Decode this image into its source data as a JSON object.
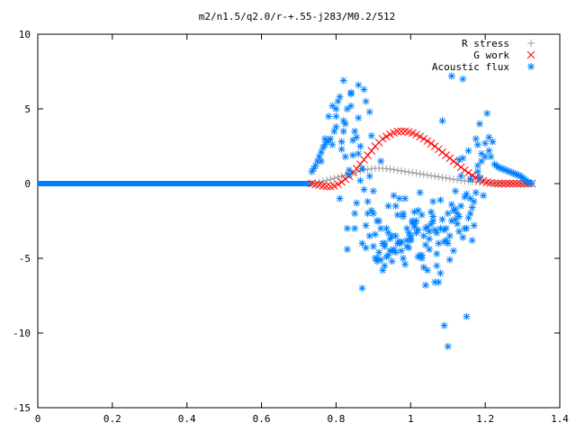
{
  "chart_data": {
    "type": "scatter",
    "title": "m2/n1.5/q2.0/r-+.55-j283/M0.2/512",
    "xlabel": "",
    "ylabel": "",
    "xlim": [
      0,
      1.4
    ],
    "ylim": [
      -15,
      10
    ],
    "x_ticks": [
      "0",
      "0.2",
      "0.4",
      "0.6",
      "0.8",
      "1",
      "1.2",
      "1.4"
    ],
    "y_ticks": [
      "10",
      "5",
      "0",
      "-5",
      "-10",
      "-15"
    ],
    "legend_position": "top-right",
    "series": [
      {
        "name": "R stress",
        "marker": "+",
        "color": "#a0a0a0",
        "x": [
          0.735,
          0.745,
          0.755,
          0.765,
          0.775,
          0.785,
          0.795,
          0.805,
          0.815,
          0.825,
          0.835,
          0.845,
          0.855,
          0.865,
          0.875,
          0.885,
          0.895,
          0.905,
          0.915,
          0.925,
          0.935,
          0.945,
          0.955,
          0.965,
          0.975,
          0.985,
          0.995,
          1.005,
          1.015,
          1.025,
          1.035,
          1.045,
          1.055,
          1.065,
          1.075,
          1.085,
          1.095,
          1.105,
          1.115,
          1.125,
          1.135,
          1.145,
          1.155,
          1.165,
          1.175,
          1.185,
          1.195,
          1.205,
          1.215,
          1.225,
          1.235,
          1.245,
          1.255,
          1.265,
          1.275,
          1.285,
          1.295,
          1.305,
          1.315,
          1.325
        ],
        "y": [
          0.0,
          0.05,
          0.1,
          0.16,
          0.22,
          0.29,
          0.36,
          0.43,
          0.5,
          0.57,
          0.64,
          0.71,
          0.78,
          0.85,
          0.91,
          0.96,
          1.0,
          1.02,
          1.03,
          1.02,
          1.0,
          0.97,
          0.93,
          0.89,
          0.85,
          0.81,
          0.77,
          0.73,
          0.69,
          0.65,
          0.61,
          0.57,
          0.53,
          0.49,
          0.45,
          0.41,
          0.37,
          0.33,
          0.29,
          0.25,
          0.21,
          0.18,
          0.15,
          0.12,
          0.1,
          0.08,
          0.06,
          0.05,
          0.04,
          0.03,
          0.02,
          0.02,
          0.01,
          0.01,
          0.0,
          0.0,
          0.0,
          0.0,
          0.0,
          0.0
        ]
      },
      {
        "name": "G work",
        "marker": "x",
        "color": "#ff0000",
        "x": [
          0.735,
          0.745,
          0.755,
          0.765,
          0.775,
          0.785,
          0.795,
          0.805,
          0.815,
          0.825,
          0.835,
          0.845,
          0.855,
          0.865,
          0.875,
          0.885,
          0.895,
          0.905,
          0.915,
          0.925,
          0.935,
          0.945,
          0.955,
          0.965,
          0.975,
          0.985,
          0.995,
          1.005,
          1.015,
          1.025,
          1.035,
          1.045,
          1.055,
          1.065,
          1.075,
          1.085,
          1.095,
          1.105,
          1.115,
          1.125,
          1.135,
          1.145,
          1.155,
          1.165,
          1.175,
          1.185,
          1.195,
          1.205,
          1.215,
          1.225,
          1.235,
          1.245,
          1.255,
          1.265,
          1.275,
          1.285,
          1.295,
          1.305,
          1.315,
          1.325
        ],
        "y": [
          0.0,
          -0.05,
          -0.1,
          -0.15,
          -0.18,
          -0.2,
          -0.15,
          -0.05,
          0.1,
          0.3,
          0.5,
          0.75,
          1.0,
          1.3,
          1.6,
          1.9,
          2.2,
          2.5,
          2.75,
          3.0,
          3.15,
          3.3,
          3.4,
          3.48,
          3.5,
          3.5,
          3.45,
          3.38,
          3.28,
          3.15,
          3.0,
          2.85,
          2.68,
          2.5,
          2.3,
          2.1,
          1.9,
          1.7,
          1.5,
          1.3,
          1.1,
          0.9,
          0.72,
          0.55,
          0.4,
          0.28,
          0.18,
          0.1,
          0.05,
          0.02,
          0.0,
          0.0,
          0.0,
          0.0,
          0.0,
          0.0,
          0.0,
          0.0,
          0.0,
          0.0
        ]
      },
      {
        "name": "Acoustic flux",
        "marker": "*",
        "color": "#0080ff",
        "x": [
          0.735,
          0.74,
          0.745,
          0.75,
          0.755,
          0.76,
          0.765,
          0.77,
          0.775,
          0.78,
          0.785,
          0.79,
          0.795,
          0.8,
          0.805,
          0.81,
          0.815,
          0.82,
          0.825,
          0.83,
          0.835,
          0.84,
          0.845,
          0.85,
          0.855,
          0.86,
          0.865,
          0.87,
          0.875,
          0.88,
          0.885,
          0.89,
          0.895,
          0.9,
          0.905,
          0.91,
          0.915,
          0.92,
          0.925,
          0.93,
          0.935,
          0.94,
          0.945,
          0.95,
          0.955,
          0.96,
          0.965,
          0.97,
          0.975,
          0.98,
          0.985,
          0.99,
          0.995,
          1.0,
          1.005,
          1.01,
          1.015,
          1.02,
          1.025,
          1.03,
          1.035,
          1.04,
          1.045,
          1.05,
          1.055,
          1.06,
          1.065,
          1.07,
          1.075,
          1.08,
          1.085,
          1.09,
          1.095,
          1.1,
          1.105,
          1.11,
          1.115,
          1.12,
          1.125,
          1.13,
          1.135,
          1.14,
          1.145,
          1.15,
          1.155,
          1.16,
          1.165,
          1.17,
          1.175,
          1.18,
          1.185,
          1.19,
          1.195,
          1.2,
          1.205,
          1.21,
          1.215,
          1.22,
          1.225,
          1.23,
          1.235,
          1.24,
          1.245,
          1.25,
          1.255,
          1.26,
          1.265,
          1.27,
          1.275,
          1.28,
          1.285,
          1.29,
          1.295,
          1.3,
          1.305,
          1.31,
          1.315,
          1.32,
          1.325,
          0.76,
          0.77,
          0.78,
          0.79,
          0.8,
          0.81,
          0.82,
          0.83,
          0.84,
          0.85,
          0.86,
          0.87,
          0.88,
          0.89,
          0.9,
          0.91,
          0.92,
          0.93,
          0.94,
          0.95,
          0.96,
          0.97,
          0.98,
          0.99,
          1.0,
          1.01,
          1.02,
          1.03,
          1.04,
          1.05,
          1.06,
          1.07,
          1.08,
          1.09,
          1.1,
          1.11,
          1.12,
          1.13,
          1.14,
          1.15,
          1.16,
          1.17,
          1.18,
          1.19,
          1.2,
          1.21,
          0.815,
          0.825,
          0.835,
          0.845,
          0.855,
          0.865,
          0.875,
          0.885,
          0.895,
          0.905,
          0.915,
          0.925,
          0.935,
          0.945,
          0.955,
          0.965,
          0.975,
          0.985,
          0.995,
          1.005,
          1.015,
          1.025,
          1.035,
          1.045,
          1.055,
          1.065,
          1.075,
          1.085,
          1.095,
          1.105,
          1.115,
          1.125,
          1.135,
          1.145,
          1.155,
          1.165,
          1.175,
          1.185,
          0.8,
          0.82,
          0.84,
          0.86,
          0.88,
          0.9,
          0.92,
          0.94,
          0.96,
          0.98,
          1.0,
          1.02,
          1.04,
          1.06,
          1.08,
          1.1,
          1.12,
          1.14,
          1.16,
          1.18,
          0.83,
          0.87,
          0.91,
          0.95,
          0.99,
          1.03,
          1.07,
          1.11,
          1.15,
          0.85,
          0.89,
          0.93,
          0.97,
          1.01,
          1.05,
          1.09,
          1.13
        ],
        "y": [
          0.8,
          1.0,
          1.2,
          1.5,
          1.8,
          2.1,
          2.4,
          2.6,
          2.8,
          2.9,
          3.0,
          2.6,
          3.5,
          4.5,
          5.5,
          -1.0,
          2.8,
          6.9,
          4.0,
          -4.4,
          0.9,
          5.2,
          1.9,
          -3.0,
          3.1,
          6.6,
          2.5,
          -7.0,
          6.3,
          -4.3,
          -2.0,
          0.5,
          3.2,
          -2.0,
          -5.0,
          -5.2,
          -2.5,
          1.5,
          -4.0,
          -5.5,
          -3.0,
          -1.5,
          -4.5,
          -3.5,
          -0.8,
          -1.5,
          -4.0,
          -4.0,
          -4.5,
          -5.0,
          -1.0,
          -3.0,
          -3.3,
          -3.5,
          -2.5,
          -1.9,
          -2.5,
          -1.8,
          -0.6,
          -4.8,
          -3.5,
          -6.8,
          -5.8,
          -3.7,
          -2.7,
          -1.2,
          -6.6,
          -5.5,
          -6.6,
          -3.0,
          4.2,
          -9.5,
          -3.8,
          -10.9,
          -3.5,
          7.2,
          -1.8,
          -2.4,
          -2.0,
          1.6,
          0.5,
          7.0,
          -3.0,
          -8.9,
          2.2,
          -2.0,
          -3.8,
          -1.2,
          3.0,
          1.2,
          4.0,
          2.0,
          -0.8,
          1.8,
          4.7,
          2.2,
          1.8,
          2.8,
          1.3,
          1.2,
          1.1,
          1.05,
          1.0,
          0.95,
          0.9,
          0.85,
          0.8,
          0.75,
          0.7,
          0.65,
          0.6,
          0.55,
          0.5,
          0.4,
          0.3,
          0.2,
          0.1,
          0.05,
          0.0,
          1.5,
          3.0,
          4.5,
          5.2,
          3.8,
          5.8,
          4.2,
          5.0,
          6.1,
          3.5,
          2.0,
          1.0,
          5.5,
          4.8,
          -0.5,
          -2.5,
          -3.0,
          -4.0,
          -4.8,
          -5.2,
          -3.5,
          -1.0,
          -2.0,
          -4.2,
          -3.8,
          -2.9,
          -3.1,
          -5.0,
          -4.1,
          -3.2,
          -2.2,
          -4.7,
          -6.0,
          -3.9,
          -4.0,
          -2.5,
          -1.7,
          -3.2,
          -3.6,
          -3.0,
          -1.0,
          -2.8,
          0.8,
          1.5,
          2.7,
          3.1,
          2.3,
          1.8,
          0.6,
          2.9,
          -1.3,
          0.2,
          -0.4,
          -1.2,
          -1.8,
          -3.4,
          -4.6,
          -5.8,
          -4.9,
          -3.7,
          -4.4,
          -2.1,
          -3.9,
          -5.4,
          -4.3,
          -2.6,
          -3.3,
          -4.8,
          -5.6,
          -2.9,
          -1.9,
          -3.1,
          -4.0,
          -2.4,
          -3.0,
          -5.1,
          -4.5,
          -2.7,
          -1.5,
          -0.9,
          -2.3,
          -1.6,
          -0.6,
          0.4,
          5.0,
          3.5,
          6.0,
          4.4,
          -2.8,
          -4.2,
          -5.1,
          -3.3,
          -4.6,
          -2.2,
          -3.7,
          -4.9,
          -3.0,
          -2.5,
          -1.1,
          -2.0,
          -0.5,
          1.7,
          0.3,
          2.6,
          -3.0,
          -4.0,
          -5.0,
          -4.5,
          -3.8,
          -2.1,
          -3.3,
          -1.4,
          -0.7,
          -2.0,
          -3.5,
          -4.2,
          -3.9,
          -2.7,
          -4.4,
          -3.1,
          -2.2
        ]
      }
    ],
    "blue_flat_line": {
      "x_from": 0,
      "x_to": 0.735,
      "y": 0
    }
  }
}
